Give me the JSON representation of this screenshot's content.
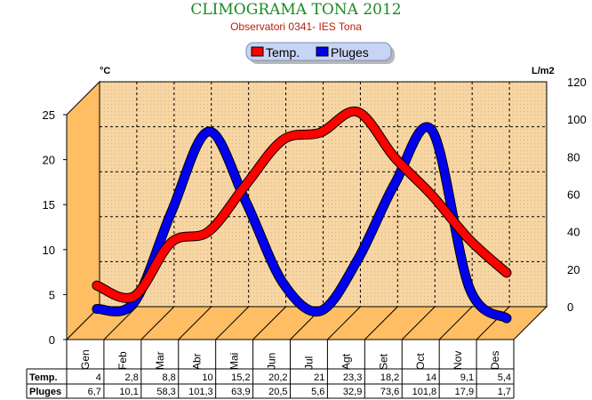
{
  "header": {
    "title": "CLIMOGRAMA TONA 2012",
    "subtitle": "Observatori 0341- IES Tona"
  },
  "colors": {
    "temp": "#ff0000",
    "rain": "#0000ee",
    "wall": "#f6d6a4",
    "side": "#ffbe64",
    "title": "#1a8a22",
    "subtitle": "#b81e0c"
  },
  "chart_data": {
    "type": "line",
    "style": "3d ribbon",
    "title": "CLIMOGRAMA TONA 2012",
    "subtitle": "Observatori 0341- IES Tona",
    "categories": [
      "Gen",
      "Feb",
      "Mar",
      "Abr",
      "Mai",
      "Jun",
      "Jul",
      "Agt",
      "Set",
      "Oct",
      "Nov",
      "Des"
    ],
    "series": [
      {
        "name": "Temp.",
        "axis": "left",
        "values": [
          4,
          2.8,
          8.8,
          10,
          15.2,
          20.2,
          21,
          23.3,
          18.2,
          14,
          9.1,
          5.4
        ]
      },
      {
        "name": "Pluges",
        "axis": "right",
        "values": [
          6.7,
          10.1,
          58.3,
          101.3,
          63.9,
          20.5,
          5.6,
          32.9,
          73.6,
          101.8,
          17.9,
          1.7
        ]
      }
    ],
    "y_left": {
      "label": "°C",
      "ylim": [
        0,
        25
      ],
      "ticks": [
        "0",
        "5",
        "10",
        "15",
        "20",
        "25"
      ]
    },
    "y_right": {
      "label": "L/m2",
      "ylim": [
        0,
        120
      ],
      "ticks": [
        "0",
        "20",
        "40",
        "60",
        "80",
        "100",
        "120"
      ]
    },
    "table": {
      "rows": [
        {
          "label": "Temp.",
          "cells": [
            "4",
            "2,8",
            "8,8",
            "10",
            "15,2",
            "20,2",
            "21",
            "23,3",
            "18,2",
            "14",
            "9,1",
            "5,4"
          ]
        },
        {
          "label": "Pluges",
          "cells": [
            "6,7",
            "10,1",
            "58,3",
            "101,3",
            "63,9",
            "20,5",
            "5,6",
            "32,9",
            "73,6",
            "101,8",
            "17,9",
            "1,7"
          ]
        }
      ]
    },
    "grid": true,
    "legend": "top-center"
  }
}
